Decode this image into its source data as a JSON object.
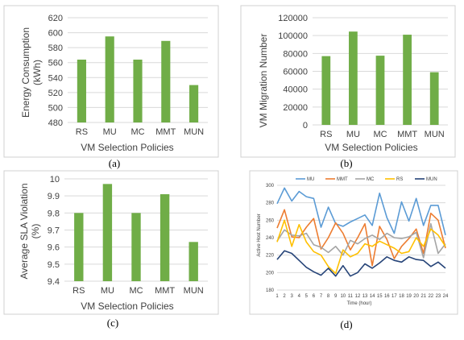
{
  "bar_color": "#70ad47",
  "chart_data": [
    {
      "type": "bar",
      "caption": "(a)",
      "categories": [
        "RS",
        "MU",
        "MC",
        "MMT",
        "MUN"
      ],
      "values": [
        564,
        595,
        564,
        589,
        530
      ],
      "xlabel": "VM Selection Policies",
      "ylabel": "Energy Consumption (kWh)",
      "ylim": [
        480,
        620
      ],
      "yticks": [
        480,
        500,
        520,
        540,
        560,
        580,
        600,
        620
      ],
      "yticklabels": [
        "480",
        "500",
        "520",
        "540",
        "560",
        "580",
        "600",
        "620"
      ],
      "grid": true
    },
    {
      "type": "bar",
      "caption": "(b)",
      "categories": [
        "RS",
        "MU",
        "MC",
        "MMT",
        "MUN"
      ],
      "values": [
        77000,
        104500,
        77500,
        101000,
        59000
      ],
      "xlabel": "VM Selection Policies",
      "ylabel": "VM Migration Number",
      "ylim": [
        0,
        120000
      ],
      "yticks": [
        0,
        20000,
        40000,
        60000,
        80000,
        100000,
        120000
      ],
      "yticklabels": [
        "0",
        "20000",
        "40000",
        "60000",
        "80000",
        "100000",
        "120000"
      ],
      "grid": true
    },
    {
      "type": "bar",
      "caption": "(c)",
      "categories": [
        "RS",
        "MU",
        "MC",
        "MMT",
        "MUN"
      ],
      "values": [
        9.8,
        9.97,
        9.8,
        9.91,
        9.63
      ],
      "xlabel": "VM Selection Policies",
      "ylabel": "Average SLA Violation (%)",
      "ylim": [
        9.4,
        10.0
      ],
      "yticks": [
        9.4,
        9.5,
        9.6,
        9.7,
        9.8,
        9.9,
        10.0
      ],
      "yticklabels": [
        "9.4",
        "9.5",
        "9.6",
        "9.7",
        "9.8",
        "9.9",
        "10"
      ],
      "grid": true
    },
    {
      "type": "line",
      "caption": "(d)",
      "x": [
        1,
        2,
        3,
        4,
        5,
        6,
        7,
        8,
        9,
        10,
        11,
        12,
        13,
        14,
        15,
        16,
        17,
        18,
        19,
        20,
        21,
        22,
        23,
        24
      ],
      "xlabel": "Time (hour)",
      "ylabel": "Active Host Number",
      "ylim": [
        180,
        300
      ],
      "yticks": [
        180,
        200,
        220,
        240,
        260,
        280,
        300
      ],
      "yticklabels": [
        "180",
        "200",
        "220",
        "240",
        "260",
        "280",
        "300"
      ],
      "legend": "top",
      "grid": true,
      "series": [
        {
          "name": "MU",
          "color": "#5b9bd5",
          "values": [
            279,
            297,
            282,
            293,
            287,
            285,
            252,
            275,
            256,
            253,
            258,
            262,
            266,
            254,
            291,
            263,
            245,
            281,
            259,
            285,
            254,
            277,
            277,
            243
          ]
        },
        {
          "name": "MMT",
          "color": "#ed7d31",
          "values": [
            251,
            272,
            241,
            240,
            252,
            262,
            227,
            240,
            257,
            245,
            226,
            240,
            256,
            208,
            253,
            238,
            216,
            230,
            239,
            250,
            222,
            268,
            260,
            228
          ]
        },
        {
          "name": "MC",
          "color": "#a5a5a5",
          "values": [
            236,
            249,
            243,
            242,
            245,
            232,
            229,
            223,
            230,
            220,
            237,
            233,
            239,
            243,
            238,
            245,
            240,
            239,
            241,
            246,
            217,
            256,
            222,
            233
          ]
        },
        {
          "name": "RS",
          "color": "#ffc000",
          "values": [
            235,
            260,
            230,
            255,
            235,
            224,
            220,
            207,
            199,
            226,
            218,
            222,
            233,
            230,
            236,
            232,
            228,
            222,
            224,
            240,
            230,
            250,
            243,
            230
          ]
        },
        {
          "name": "MUN",
          "color": "#264478",
          "values": [
            215,
            225,
            222,
            214,
            206,
            201,
            197,
            205,
            196,
            208,
            196,
            200,
            210,
            205,
            211,
            218,
            214,
            212,
            218,
            215,
            214,
            207,
            212,
            205
          ]
        }
      ]
    }
  ]
}
